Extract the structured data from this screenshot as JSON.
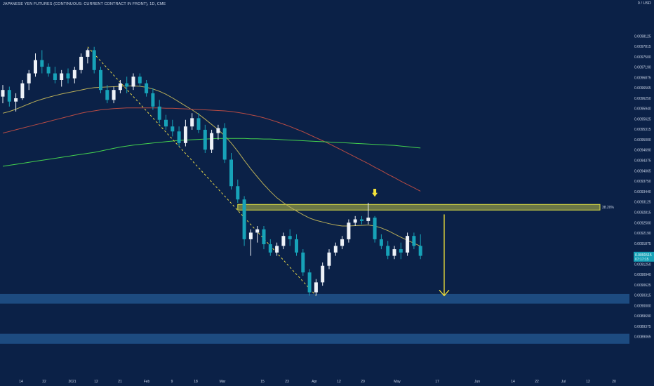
{
  "header": {
    "title": "JAPANESE YEN FUTURES (CONTINUOUS: CURRENT CONTRACT IN FRONT), 1D, CME"
  },
  "price_axis": {
    "top_label": "0 / USD",
    "current_price": "0.0091515",
    "countdown": "07:17:15"
  },
  "fib_level": {
    "label": "38.20%",
    "price": 0.009297
  },
  "colors": {
    "background": "#0b2147",
    "bull_candle": "#eef2f8",
    "bear_candle": "#17a2b8",
    "ma_short": "#b9ae58",
    "ma_mid": "#b84b44",
    "ma_long": "#44d24e",
    "trendline": "#e8d84a",
    "resistance_band": "#dfe044",
    "support_band": "#1d4b80",
    "arrow": "#f2e23a",
    "axis_text": "#c9d3e6"
  },
  "chart_data": {
    "type": "candlestick",
    "title": "JAPANESE YEN FUTURES (CONTINUOUS: CURRENT CONTRACT IN FRONT), 1D, CME",
    "y_range": [
      0.0088,
      0.0099
    ],
    "y_ticks": [
      "0.0098125",
      "0.0097815",
      "0.0097500",
      "0.0097190",
      "0.0096875",
      "0.0096565",
      "0.0096250",
      "0.0095940",
      "0.0095625",
      "0.0095315",
      "0.0095000",
      "0.0094690",
      "0.0094375",
      "0.0094065",
      "0.0093750",
      "0.0093440",
      "0.0093125",
      "0.0092815",
      "0.0092500",
      "0.0092190",
      "0.0091875",
      "0.0091250",
      "0.0090940",
      "0.0090625",
      "0.0090315",
      "0.0090000",
      "0.0089690",
      "0.0089375",
      "0.0089065"
    ],
    "x_ticks": [
      "14",
      "22",
      "2021",
      "12",
      "21",
      "Feb",
      "9",
      "18",
      "Mar",
      "15",
      "23",
      "Apr",
      "12",
      "20",
      "May",
      "17",
      "Jun",
      "14",
      "22",
      "Jul",
      "12",
      "20"
    ],
    "resistance_zone": [
      0.009288,
      0.009305
    ],
    "support_zones": [
      [
        0.009006,
        0.009035
      ],
      [
        0.008885,
        0.008915
      ]
    ],
    "target_arrow": {
      "from": 0.009275,
      "to": 0.00903
    },
    "candles": [
      [
        0.00963,
        0.009665,
        0.00961,
        0.00965
      ],
      [
        0.00965,
        0.00966,
        0.0096,
        0.009615
      ],
      [
        0.009615,
        0.00964,
        0.009585,
        0.009625
      ],
      [
        0.009625,
        0.00968,
        0.00962,
        0.00967
      ],
      [
        0.00967,
        0.00971,
        0.00965,
        0.0097
      ],
      [
        0.0097,
        0.00976,
        0.00969,
        0.00974
      ],
      [
        0.00974,
        0.00977,
        0.0097,
        0.00972
      ],
      [
        0.00972,
        0.00973,
        0.00969,
        0.0097
      ],
      [
        0.0097,
        0.00972,
        0.00967,
        0.00968
      ],
      [
        0.00968,
        0.00971,
        0.00966,
        0.0097
      ],
      [
        0.0097,
        0.009715,
        0.00967,
        0.009685
      ],
      [
        0.009685,
        0.00972,
        0.00967,
        0.00971
      ],
      [
        0.00971,
        0.00976,
        0.0097,
        0.00975
      ],
      [
        0.00975,
        0.009775,
        0.00973,
        0.00977
      ],
      [
        0.00977,
        0.00978,
        0.0097,
        0.00971
      ],
      [
        0.00971,
        0.00972,
        0.00964,
        0.00965
      ],
      [
        0.00965,
        0.009665,
        0.00961,
        0.00962
      ],
      [
        0.00962,
        0.00966,
        0.00961,
        0.00965
      ],
      [
        0.00965,
        0.00968,
        0.00964,
        0.00967
      ],
      [
        0.00967,
        0.00969,
        0.00964,
        0.00966
      ],
      [
        0.00966,
        0.0097,
        0.00965,
        0.00969
      ],
      [
        0.00969,
        0.0097,
        0.00966,
        0.00967
      ],
      [
        0.00967,
        0.00968,
        0.00963,
        0.00964
      ],
      [
        0.00964,
        0.009655,
        0.00959,
        0.0096
      ],
      [
        0.0096,
        0.00962,
        0.00955,
        0.00956
      ],
      [
        0.00956,
        0.009575,
        0.00953,
        0.00954
      ],
      [
        0.00954,
        0.00956,
        0.00951,
        0.009525
      ],
      [
        0.009525,
        0.00954,
        0.00948,
        0.00949
      ],
      [
        0.00949,
        0.00956,
        0.00948,
        0.00954
      ],
      [
        0.00954,
        0.00958,
        0.00953,
        0.009565
      ],
      [
        0.009565,
        0.00958,
        0.00952,
        0.00953
      ],
      [
        0.00953,
        0.009545,
        0.00946,
        0.00947
      ],
      [
        0.00947,
        0.00953,
        0.00946,
        0.00952
      ],
      [
        0.00952,
        0.009545,
        0.0095,
        0.009535
      ],
      [
        0.009535,
        0.00955,
        0.00943,
        0.00944
      ],
      [
        0.00944,
        0.00946,
        0.00935,
        0.00936
      ],
      [
        0.00936,
        0.00938,
        0.00931,
        0.00932
      ],
      [
        0.00932,
        0.00933,
        0.00918,
        0.0092
      ],
      [
        0.0092,
        0.00923,
        0.00915,
        0.00922
      ],
      [
        0.00922,
        0.00924,
        0.00919,
        0.00923
      ],
      [
        0.00923,
        0.00924,
        0.00917,
        0.009185
      ],
      [
        0.009185,
        0.0092,
        0.00915,
        0.00916
      ],
      [
        0.00916,
        0.00919,
        0.00915,
        0.00918
      ],
      [
        0.00918,
        0.00922,
        0.00917,
        0.00921
      ],
      [
        0.00921,
        0.00923,
        0.00918,
        0.0092
      ],
      [
        0.0092,
        0.009215,
        0.00915,
        0.00916
      ],
      [
        0.00916,
        0.00917,
        0.00909,
        0.0091
      ],
      [
        0.0091,
        0.00911,
        0.00903,
        0.00904
      ],
      [
        0.00904,
        0.00908,
        0.00903,
        0.00907
      ],
      [
        0.00907,
        0.00913,
        0.00906,
        0.00912
      ],
      [
        0.00912,
        0.00917,
        0.00911,
        0.00916
      ],
      [
        0.00916,
        0.00919,
        0.00915,
        0.00918
      ],
      [
        0.00918,
        0.00921,
        0.00917,
        0.0092
      ],
      [
        0.0092,
        0.00926,
        0.00919,
        0.00925
      ],
      [
        0.00925,
        0.00927,
        0.00924,
        0.00926
      ],
      [
        0.00926,
        0.00927,
        0.009245,
        0.009255
      ],
      [
        0.009255,
        0.00931,
        0.009245,
        0.009265
      ],
      [
        0.009265,
        0.00927,
        0.00919,
        0.0092
      ],
      [
        0.0092,
        0.009215,
        0.00917,
        0.00918
      ],
      [
        0.00918,
        0.009195,
        0.00914,
        0.00915
      ],
      [
        0.00915,
        0.00918,
        0.00914,
        0.00917
      ],
      [
        0.00917,
        0.00919,
        0.00914,
        0.00916
      ],
      [
        0.00916,
        0.00922,
        0.00915,
        0.00921
      ],
      [
        0.00921,
        0.00922,
        0.00917,
        0.00918
      ],
      [
        0.00918,
        0.009215,
        0.00914,
        0.00915
      ]
    ],
    "ma_short": [
      0.00958,
      0.009585,
      0.009592,
      0.0096,
      0.009608,
      0.009616,
      0.009622,
      0.009628,
      0.009633,
      0.009638,
      0.009642,
      0.009646,
      0.00965,
      0.009654,
      0.009657,
      0.009658,
      0.009659,
      0.00966,
      0.009661,
      0.009662,
      0.009662,
      0.009661,
      0.009658,
      0.009653,
      0.009646,
      0.009637,
      0.009626,
      0.009614,
      0.009602,
      0.00959,
      0.009577,
      0.009562,
      0.009546,
      0.00953,
      0.009512,
      0.00949,
      0.009465,
      0.009438,
      0.009412,
      0.009388,
      0.009365,
      0.009344,
      0.009325,
      0.00931,
      0.009297,
      0.009285,
      0.009274,
      0.009264,
      0.009257,
      0.009252,
      0.009247,
      0.009243,
      0.00924,
      0.00924,
      0.009241,
      0.009242,
      0.009243,
      0.00924,
      0.009234,
      0.009226,
      0.009216,
      0.009206,
      0.009197,
      0.009188,
      0.009179
    ],
    "ma_mid": [
      0.00952,
      0.009525,
      0.00953,
      0.009535,
      0.00954,
      0.009545,
      0.00955,
      0.009555,
      0.00956,
      0.009565,
      0.00957,
      0.009575,
      0.00958,
      0.009584,
      0.009587,
      0.00959,
      0.009592,
      0.009594,
      0.009595,
      0.009596,
      0.009596,
      0.009596,
      0.009596,
      0.009596,
      0.009596,
      0.009595,
      0.009595,
      0.009594,
      0.009593,
      0.009592,
      0.009591,
      0.00959,
      0.009589,
      0.009588,
      0.009587,
      0.009585,
      0.009582,
      0.009579,
      0.009575,
      0.009571,
      0.009566,
      0.00956,
      0.009554,
      0.009547,
      0.00954,
      0.009532,
      0.009524,
      0.009515,
      0.009506,
      0.009497,
      0.009488,
      0.009478,
      0.009468,
      0.009458,
      0.009448,
      0.009438,
      0.009428,
      0.009417,
      0.009407,
      0.009396,
      0.009386,
      0.009375,
      0.009365,
      0.009355,
      0.009345
    ],
    "ma_long": [
      0.00942,
      0.009423,
      0.009426,
      0.009429,
      0.009432,
      0.009435,
      0.009438,
      0.009441,
      0.009444,
      0.009447,
      0.00945,
      0.009453,
      0.009456,
      0.009459,
      0.009462,
      0.009466,
      0.00947,
      0.009474,
      0.009478,
      0.009481,
      0.009484,
      0.009486,
      0.009488,
      0.00949,
      0.009492,
      0.009494,
      0.009496,
      0.009498,
      0.009499,
      0.0095,
      0.009501,
      0.009502,
      0.009503,
      0.009504,
      0.009504,
      0.009504,
      0.009504,
      0.009504,
      0.009503,
      0.009503,
      0.009502,
      0.009502,
      0.009501,
      0.0095,
      0.009499,
      0.009498,
      0.009497,
      0.009496,
      0.009495,
      0.009494,
      0.009493,
      0.009492,
      0.009491,
      0.00949,
      0.009489,
      0.009488,
      0.009487,
      0.009486,
      0.009485,
      0.009484,
      0.009483,
      0.009481,
      0.009479,
      0.009477,
      0.009475
    ]
  }
}
